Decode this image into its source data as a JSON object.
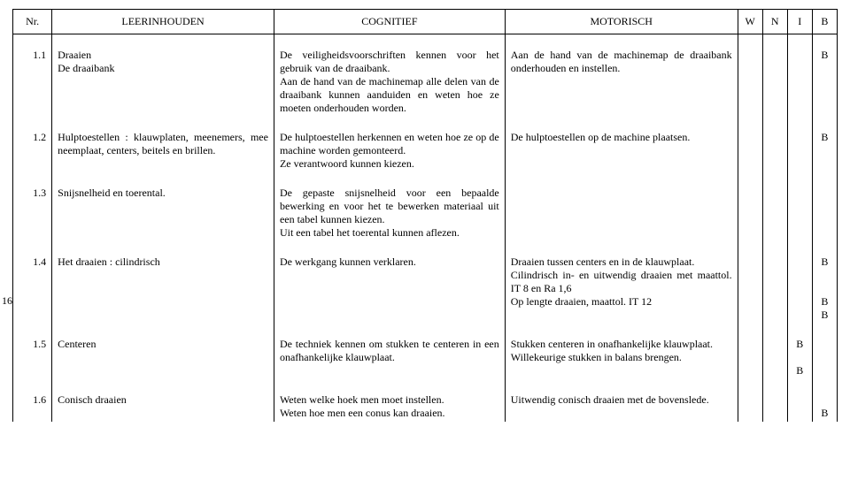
{
  "font": {
    "size_pt": 12,
    "header_size_pt": 12,
    "color": "#000000"
  },
  "background_color": "#ffffff",
  "border_color": "#000000",
  "side_page_number": "16",
  "columns": {
    "nr": "Nr.",
    "leerinhouden": "LEERINHOUDEN",
    "cognitief": "COGNITIEF",
    "motorisch": "MOTORISCH",
    "w": "W",
    "n": "N",
    "i": "I",
    "b": "B"
  },
  "rows": [
    {
      "nr": "1.1",
      "leer": "Draaien\nDe draaibank",
      "cog": "De veiligheidsvoorschriften kennen voor het gebruik van de draaibank.\nAan de hand van de machinemap alle delen van de draaibank kunnen aanduiden en weten hoe ze moeten onderhouden worden.",
      "mot": "Aan de hand van de machinemap de draaibank onderhouden en instellen.",
      "b": "B"
    },
    {
      "nr": "1.2",
      "leer": "Hulptoestellen : klauwplaten, meenemers, mee neemplaat, centers, beitels en brillen.",
      "cog": "De hulptoestellen herkennen en weten hoe ze op de machine worden gemonteerd.\nZe verantwoord kunnen kiezen.",
      "mot": "De hulptoestellen op de machine plaatsen.",
      "b": "B"
    },
    {
      "nr": "1.3",
      "leer": "Snijsnelheid en toerental.",
      "cog": "De gepaste snijsnelheid voor een bepaalde bewerking en voor het te bewerken materiaal uit een tabel kunnen kiezen.\nUit een tabel het toerental kunnen aflezen.",
      "mot": "",
      "b": ""
    },
    {
      "nr": "1.4",
      "leer": "Het draaien : cilindrisch",
      "cog": "De werkgang kunnen verklaren.",
      "mot": "Draaien tussen centers en in de klauwplaat.\nCilindrisch in- en uitwendig draaien met maattol. IT 8 en Ra 1,6\nOp lengte draaien, maattol. IT 12",
      "b": "B\n \n \nB\nB"
    },
    {
      "nr": "1.5",
      "leer": "Centeren",
      "cog": "De techniek kennen om stukken te centeren in een onafhankelijke klauwplaat.",
      "mot": "Stukken centeren in onafhankelijke klauwplaat.\nWillekeurige stukken in balans brengen.",
      "i": "B\n \nB",
      "b": ""
    },
    {
      "nr": "1.6",
      "leer": "Conisch draaien",
      "cog": "Weten welke hoek men moet instellen.\nWeten hoe men een conus kan draaien.",
      "mot": "Uitwendig conisch draaien met de bovenslede.",
      "b": " \nB"
    }
  ]
}
